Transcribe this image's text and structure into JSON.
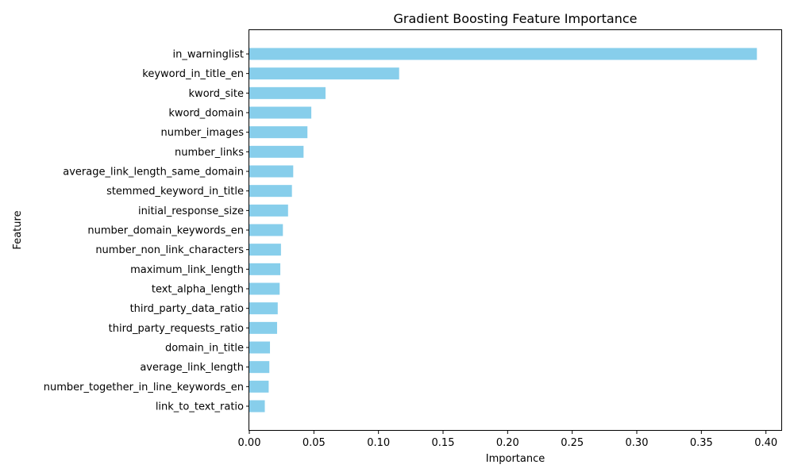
{
  "chart_data": {
    "type": "bar",
    "orientation": "horizontal",
    "title": "Gradient Boosting Feature Importance",
    "xlabel": "Importance",
    "ylabel": "Feature",
    "xlim": [
      0,
      0.4125
    ],
    "xticks": [
      0.0,
      0.05,
      0.1,
      0.15,
      0.2,
      0.25,
      0.3,
      0.35,
      0.4
    ],
    "xtick_labels": [
      "0.00",
      "0.05",
      "0.10",
      "0.15",
      "0.20",
      "0.25",
      "0.30",
      "0.35",
      "0.40"
    ],
    "bar_color": "#87ceeb",
    "grid": false,
    "categories": [
      "in_warninglist",
      "keyword_in_title_en",
      "kword_site",
      "kword_domain",
      "number_images",
      "number_links",
      "average_link_length_same_domain",
      "stemmed_keyword_in_title",
      "initial_response_size",
      "number_domain_keywords_en",
      "number_non_link_characters",
      "maximum_link_length",
      "text_alpha_length",
      "third_party_data_ratio",
      "third_party_requests_ratio",
      "domain_in_title",
      "average_link_length",
      "number_together_in_line_keywords_en",
      "link_to_text_ratio"
    ],
    "values": [
      0.393,
      0.116,
      0.059,
      0.048,
      0.045,
      0.042,
      0.034,
      0.033,
      0.03,
      0.026,
      0.0245,
      0.024,
      0.0235,
      0.022,
      0.0215,
      0.016,
      0.0155,
      0.015,
      0.012
    ]
  }
}
